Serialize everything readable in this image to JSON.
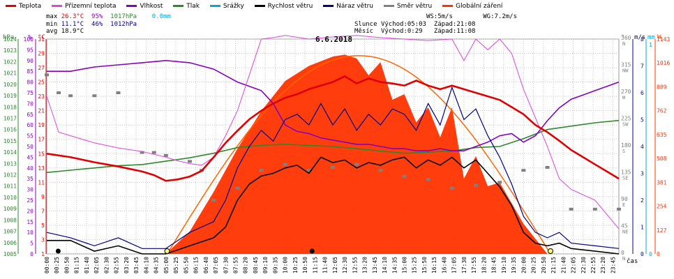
{
  "legend": [
    {
      "label": "Teplota",
      "color": "#e00000"
    },
    {
      "label": "Přízemní teplota",
      "color": "#dd44dd"
    },
    {
      "label": "Vlhkost",
      "color": "#8800bb"
    },
    {
      "label": "Tlak",
      "color": "#2a8a2a"
    },
    {
      "label": "Srážky",
      "color": "#00a8d8"
    },
    {
      "label": "Rychlost větru",
      "color": "#000000"
    },
    {
      "label": "Náraz větru",
      "color": "#000088"
    },
    {
      "label": "Směr větru",
      "color": "#808080"
    },
    {
      "label": "Globální záření",
      "color": "#ff3300"
    }
  ],
  "stats": {
    "max_label": "max",
    "max_temp": "26.3°C",
    "max_hum": "95%",
    "max_press": "1017hPa",
    "max_rain": "0.0mm",
    "min_label": "min",
    "min_temp": "11.1°C",
    "min_hum": "46%",
    "min_press": "1012hPa",
    "avg_label": "avg",
    "avg_temp": "18.9°C"
  },
  "sun": {
    "ws": "WS:5m/s",
    "wg": "WG:7.2m/s",
    "slunce_label": "Slunce",
    "slunce_rise": "Východ:05:03",
    "slunce_set": "Západ:21:08",
    "mesic_label": "Měsíc",
    "mesic_rise": "Východ:0:29",
    "mesic_set": "Západ:11:08"
  },
  "title": "6.6.2018",
  "axes": {
    "hpa_unit": "hPa",
    "pct_unit": "%",
    "temp_unit": "°C",
    "dir_unit": "°",
    "ms_unit": "m/s",
    "mm_unit": "mm",
    "wm_unit": "W",
    "x_unit": "čas",
    "hpa_ticks": [
      "1024",
      "1023",
      "1022",
      "1021",
      "1020",
      "1019",
      "1018",
      "1017",
      "1016",
      "1015",
      "1014",
      "1013",
      "1012",
      "1011",
      "1010",
      "1009",
      "1008",
      "1007",
      "1006",
      "1005"
    ],
    "pct_ticks": [
      "100",
      "95",
      "90",
      "85",
      "80",
      "75",
      "70",
      "65",
      "60",
      "55",
      "50",
      "45",
      "40",
      "35",
      "30",
      "25",
      "20",
      "15",
      "10",
      "5",
      "0"
    ],
    "temp_ticks": [
      "31",
      "29",
      "27",
      "25",
      "23",
      "21",
      "19",
      "17",
      "15",
      "13",
      "11",
      "9",
      "7",
      "5",
      "3",
      "1"
    ],
    "dir_ticks": [
      {
        "deg": "360",
        "dir": "N"
      },
      {
        "deg": "315",
        "dir": "NW"
      },
      {
        "deg": "270",
        "dir": "W"
      },
      {
        "deg": "225",
        "dir": "SW"
      },
      {
        "deg": "180",
        "dir": "S"
      },
      {
        "deg": "135",
        "dir": "SE"
      },
      {
        "deg": "90",
        "dir": "E"
      },
      {
        "deg": "45",
        "dir": "NE"
      },
      {
        "deg": "0",
        "dir": "N"
      }
    ],
    "ms_ticks": [
      "8",
      "7",
      "6",
      "5",
      "4",
      "3",
      "2",
      "1",
      "0"
    ],
    "mm_ticks": [
      "1",
      "0"
    ],
    "wm_ticks": [
      "1143",
      "1016",
      "889",
      "762",
      "635",
      "508",
      "381",
      "254",
      "127",
      "0"
    ],
    "time_labels": [
      "00:00",
      "00:25",
      "00:50",
      "01:15",
      "01:40",
      "02:05",
      "02:30",
      "02:55",
      "03:20",
      "03:45",
      "04:10",
      "04:35",
      "05:00",
      "05:25",
      "05:50",
      "06:15",
      "06:40",
      "07:05",
      "07:30",
      "07:55",
      "08:20",
      "08:45",
      "09:10",
      "09:35",
      "10:00",
      "10:25",
      "10:50",
      "11:15",
      "11:40",
      "12:05",
      "12:30",
      "12:55",
      "13:20",
      "13:45",
      "14:10",
      "14:35",
      "15:00",
      "15:25",
      "15:50",
      "16:15",
      "16:40",
      "17:05",
      "17:30",
      "17:55",
      "18:20",
      "18:45",
      "19:10",
      "19:35",
      "20:00",
      "20:25",
      "20:50",
      "21:15",
      "21:40",
      "22:05",
      "22:30",
      "22:55",
      "23:20",
      "23:45"
    ]
  },
  "chart_data": {
    "type": "line",
    "title": "6.6.2018",
    "x_unit": "hours",
    "series": [
      {
        "name": "Teplota",
        "unit": "°C",
        "color": "#e00000",
        "x": [
          0,
          1,
          2,
          3,
          4,
          4.5,
          5,
          5.5,
          6,
          6.5,
          7,
          7.5,
          8,
          8.5,
          9,
          9.5,
          10,
          10.5,
          11,
          11.5,
          12,
          12.5,
          13,
          13.5,
          14,
          14.5,
          15,
          15.5,
          16,
          16.5,
          17,
          17.5,
          18,
          18.5,
          19,
          19.5,
          20,
          20.5,
          21,
          21.5,
          22,
          22.5,
          23,
          23.5,
          24
        ],
        "values": [
          15,
          14.5,
          13.8,
          13.2,
          12.5,
          12.0,
          11.2,
          11.4,
          11.8,
          12.6,
          14.5,
          16.5,
          18.2,
          19.8,
          21.0,
          22.0,
          22.8,
          23.3,
          24.0,
          24.5,
          25.0,
          25.8,
          24.8,
          25.5,
          25.0,
          24.8,
          24.5,
          25.2,
          24.5,
          24.0,
          24.5,
          24.0,
          23.5,
          23.0,
          22.5,
          21.5,
          20.5,
          19.0,
          18.0,
          16.8,
          15.5,
          14.5,
          13.5,
          12.5,
          11.5
        ]
      },
      {
        "name": "Přízemní teplota",
        "unit": "°C",
        "color": "#dd44dd",
        "x": [
          0,
          0.5,
          1,
          2,
          3,
          4,
          5,
          5.5,
          6,
          6.5,
          7,
          7.5,
          8,
          8.5,
          9,
          9.5,
          10,
          11,
          12,
          13,
          14,
          15,
          16,
          17,
          17.5,
          18,
          18.5,
          19,
          19.5,
          20,
          20.5,
          21,
          21.5,
          22,
          23,
          24
        ],
        "values": [
          23,
          18,
          17.5,
          16.5,
          15.8,
          15.3,
          14.5,
          14.0,
          13.6,
          13.4,
          14.5,
          17.5,
          21.0,
          26.0,
          31.0,
          31.2,
          31.5,
          31.0,
          31.3,
          31.5,
          31.2,
          31.0,
          30.8,
          31.0,
          28.0,
          31.0,
          29.5,
          31.0,
          29.0,
          24.0,
          20.0,
          16.0,
          11.5,
          10.0,
          8.5,
          4.5
        ]
      },
      {
        "name": "Vlhkost",
        "unit": "%",
        "color": "#8800bb",
        "x": [
          0,
          1,
          2,
          3,
          4,
          5,
          6,
          7,
          8,
          8.5,
          9,
          9.5,
          10,
          10.5,
          11,
          11.5,
          12,
          12.5,
          13,
          13.5,
          14,
          14.5,
          15,
          15.5,
          16,
          16.5,
          17,
          17.5,
          18,
          18.5,
          19,
          19.5,
          20,
          20.5,
          21,
          21.5,
          22,
          22.5,
          23,
          24
        ],
        "values": [
          85,
          85,
          87,
          88,
          89,
          90,
          89,
          86,
          80,
          78,
          76,
          70,
          60,
          57,
          56,
          54,
          53,
          52,
          51,
          51,
          50,
          49,
          49,
          48,
          48,
          49,
          48,
          48,
          50,
          52,
          55,
          56,
          52,
          55,
          62,
          68,
          72,
          74,
          76,
          80
        ]
      },
      {
        "name": "Tlak",
        "unit": "hPa",
        "color": "#2a8a2a",
        "x": [
          0,
          1,
          2,
          3,
          4,
          5,
          6,
          7,
          8,
          9,
          10,
          11,
          12,
          13,
          14,
          15,
          16,
          17,
          18,
          19,
          20,
          21,
          22,
          23,
          24
        ],
        "values": [
          1012.2,
          1012.4,
          1012.6,
          1012.8,
          1012.9,
          1013.2,
          1013.5,
          1013.9,
          1014.4,
          1014.6,
          1014.7,
          1014.6,
          1014.5,
          1014.3,
          1014.1,
          1013.9,
          1014.0,
          1014.1,
          1014.4,
          1014.5,
          1015.2,
          1016.0,
          1016.3,
          1016.6,
          1016.8
        ]
      },
      {
        "name": "Rychlost větru",
        "unit": "m/s",
        "color": "#000000",
        "x": [
          0,
          1,
          2,
          3,
          4,
          5,
          6,
          7,
          7.5,
          8,
          8.5,
          9,
          9.5,
          10,
          10.5,
          11,
          11.5,
          12,
          12.5,
          13,
          13.5,
          14,
          14.5,
          15,
          15.5,
          16,
          16.5,
          17,
          17.5,
          18,
          18.5,
          19,
          19.5,
          20,
          20.5,
          21,
          21.5,
          22,
          23,
          24
        ],
        "values": [
          0.5,
          0.5,
          0.1,
          0.3,
          0,
          0,
          0.3,
          0.6,
          1.0,
          2.0,
          2.6,
          2.9,
          3.0,
          3.2,
          3.3,
          3.0,
          3.6,
          3.4,
          3.5,
          3.2,
          3.4,
          3.3,
          3.5,
          3.6,
          3.2,
          3.5,
          3.3,
          3.6,
          3.2,
          3.5,
          3.0,
          2.5,
          1.8,
          0.8,
          0.4,
          0.3,
          0.4,
          0.2,
          0.1,
          0
        ]
      },
      {
        "name": "Náraz větru",
        "unit": "m/s",
        "color": "#000088",
        "x": [
          0,
          1,
          2,
          3,
          4,
          5,
          6,
          7,
          7.5,
          8,
          8.5,
          9,
          9.5,
          10,
          10.5,
          11,
          11.5,
          12,
          12.5,
          13,
          13.5,
          14,
          14.5,
          15,
          15.5,
          16,
          16.5,
          17,
          17.5,
          18,
          18.5,
          19,
          19.5,
          20,
          20.5,
          21,
          21.5,
          22,
          23,
          24
        ],
        "values": [
          0.8,
          0.6,
          0.3,
          0.6,
          0.2,
          0.2,
          0.8,
          1.2,
          2.0,
          3.2,
          4.0,
          4.6,
          4.2,
          5.0,
          5.2,
          4.8,
          5.6,
          4.8,
          5.4,
          4.6,
          5.2,
          4.8,
          5.4,
          5.2,
          4.6,
          5.6,
          4.8,
          6.2,
          5.0,
          5.4,
          4.4,
          3.6,
          2.6,
          1.4,
          0.8,
          0.6,
          0.8,
          0.4,
          0.3,
          0.2
        ]
      },
      {
        "name": "Globální záření",
        "unit": "W",
        "color": "#ff3300",
        "x": [
          5,
          6,
          7,
          8,
          9,
          10,
          11,
          12,
          12.5,
          13,
          13.5,
          14,
          14.5,
          15,
          15.5,
          16,
          16.5,
          17,
          17.5,
          18,
          18.5,
          19,
          20,
          21
        ],
        "values": [
          0,
          120,
          330,
          560,
          760,
          920,
          1000,
          1050,
          1060,
          1040,
          950,
          1020,
          820,
          850,
          700,
          780,
          620,
          780,
          400,
          520,
          360,
          380,
          160,
          0
        ]
      },
      {
        "name": "Směr větru",
        "unit": "°",
        "color": "#808080",
        "x": [
          0,
          0.5,
          1,
          2,
          3,
          4,
          4.5,
          5,
          6,
          6.5,
          7,
          8,
          9,
          10,
          11,
          12,
          13,
          14,
          15,
          16,
          17,
          18,
          19,
          20,
          21,
          22,
          23,
          24
        ],
        "values": [
          300,
          270,
          265,
          265,
          270,
          170,
          170,
          165,
          155,
          140,
          90,
          110,
          140,
          150,
          140,
          145,
          150,
          140,
          130,
          125,
          110,
          115,
          120,
          140,
          145,
          75,
          75,
          75
        ]
      }
    ],
    "axes": {
      "temperature_range": [
        1,
        31
      ],
      "humidity_range": [
        0,
        100
      ],
      "pressure_range": [
        1005,
        1024
      ],
      "wind_range": [
        0,
        8
      ],
      "direction_range": [
        0,
        360
      ],
      "radiation_range": [
        0,
        1143
      ]
    }
  }
}
